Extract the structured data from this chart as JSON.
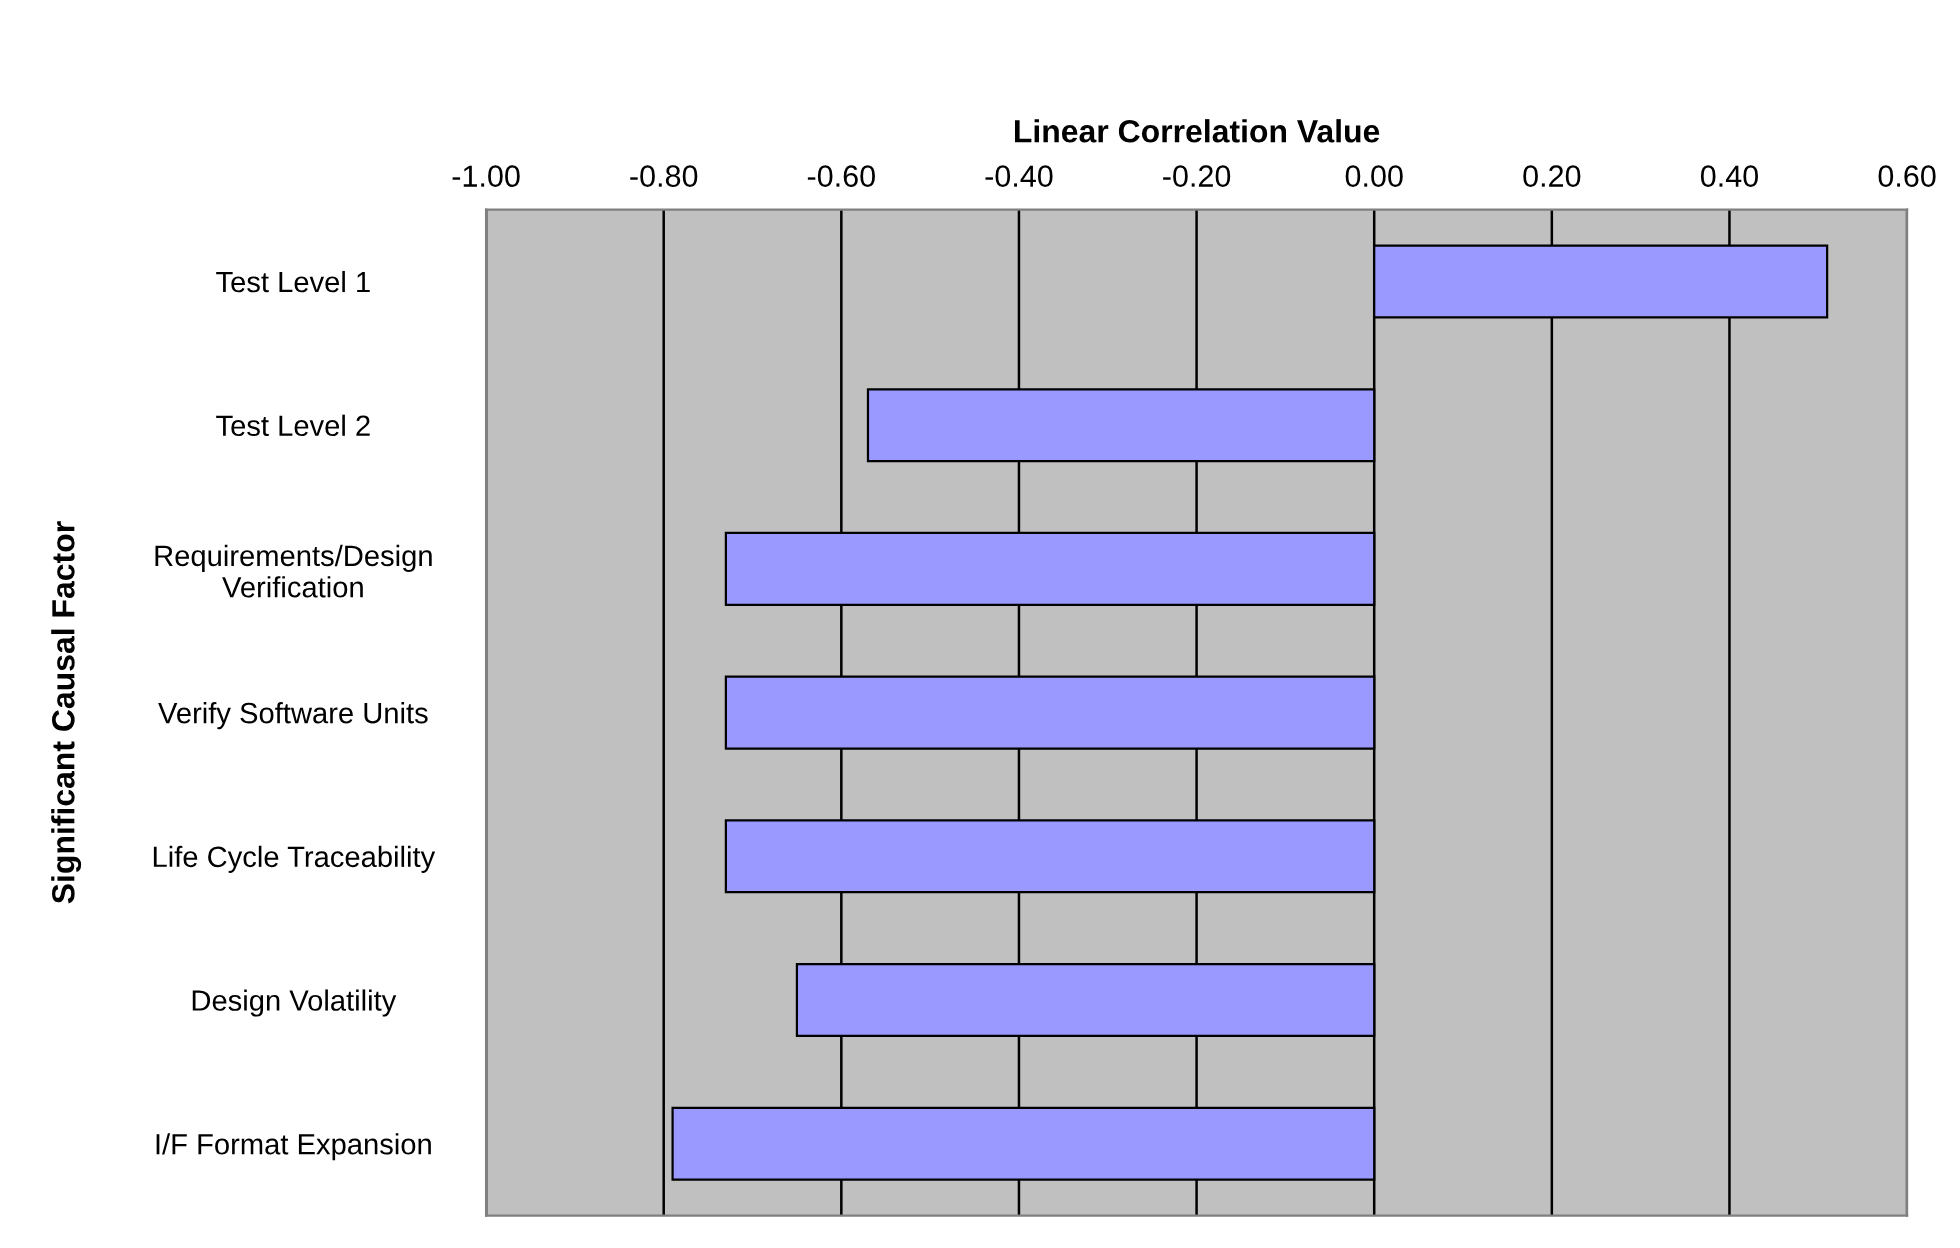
{
  "chart_data": {
    "type": "bar",
    "orientation": "horizontal",
    "title": "Linear Correlation Value",
    "ylabel": "Significant Causal Factor",
    "categories": [
      "Test Level 1",
      "Test Level 2",
      "Requirements/Design\nVerification",
      "Verify Software Units",
      "Life Cycle Traceability",
      "Design Volatility",
      "I/F Format Expansion"
    ],
    "values": [
      0.51,
      -0.57,
      -0.73,
      -0.73,
      -0.73,
      -0.65,
      -0.79
    ],
    "color": "#9999ff",
    "xlim": [
      -1.0,
      0.6
    ],
    "xticks": [
      {
        "value": -1.0,
        "label": "-1.00"
      },
      {
        "value": -0.8,
        "label": "-0.80"
      },
      {
        "value": -0.6,
        "label": "-0.60"
      },
      {
        "value": -0.4,
        "label": "-0.40"
      },
      {
        "value": -0.2,
        "label": "-0.20"
      },
      {
        "value": 0.0,
        "label": "0.00"
      },
      {
        "value": 0.2,
        "label": "0.20"
      },
      {
        "value": 0.4,
        "label": "0.40"
      },
      {
        "value": 0.6,
        "label": "0.60"
      }
    ],
    "grid": "x",
    "legend": false
  }
}
